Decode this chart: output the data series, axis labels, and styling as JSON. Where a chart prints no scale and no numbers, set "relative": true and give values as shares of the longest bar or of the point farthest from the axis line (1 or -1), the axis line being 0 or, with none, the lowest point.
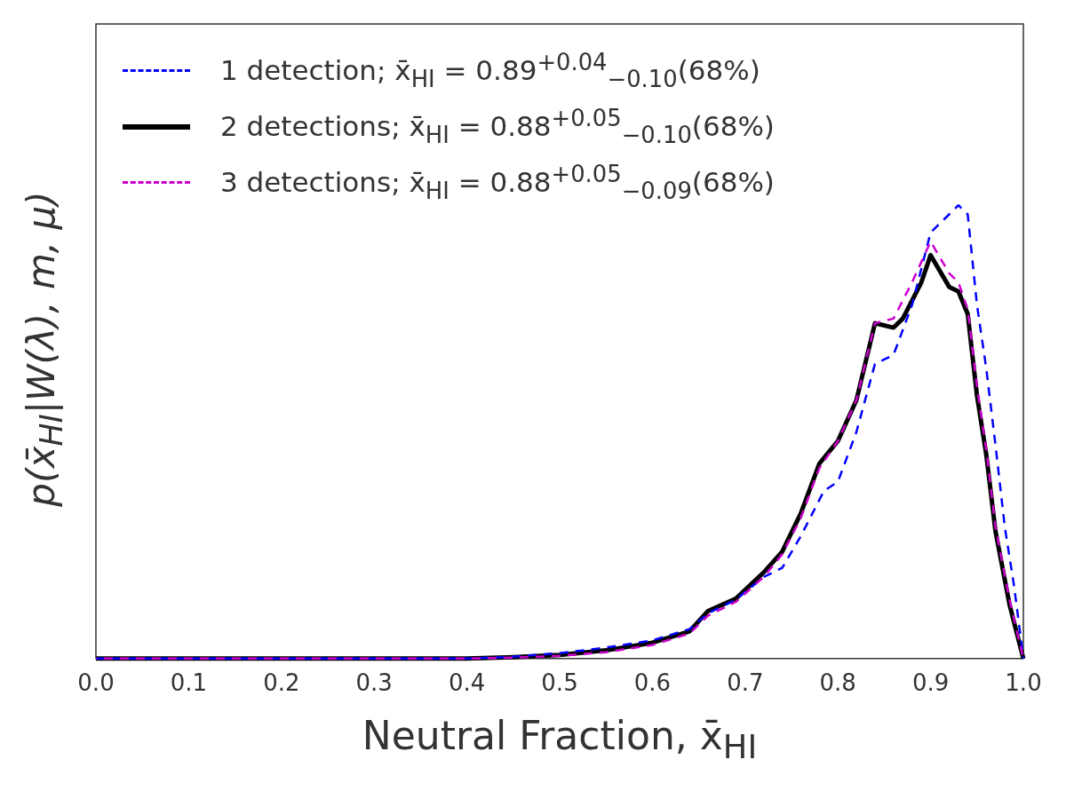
{
  "chart_data": {
    "type": "line",
    "relative": true,
    "xlabel": "Neutral Fraction, x̄$_{HI}$",
    "ylabel": "p(x̄$_{HI}$|W(λ), m, μ)",
    "xlim": [
      0,
      1
    ],
    "xticks": [
      {
        "value": 0,
        "label": "0.0"
      },
      0.1,
      0.2,
      0.3,
      0.4,
      0.5,
      0.6,
      0.7,
      0.8,
      0.9,
      {
        "value": 1,
        "label": "1.0"
      }
    ],
    "grid": false,
    "legend": "top left",
    "marker": "none",
    "series": [
      {
        "name": "1 detection; x̄$_{HI}$ = 0.89$^{+0.04}$$_{−0.10}$(68%)",
        "color": "#0000ff",
        "line_style": "dashed",
        "x": [
          0,
          0.1,
          0.2,
          0.3,
          0.4,
          0.45,
          0.5,
          0.55,
          0.6,
          0.64,
          0.66,
          0.69,
          0.72,
          0.74,
          0.76,
          0.785,
          0.8,
          0.82,
          0.84,
          0.86,
          0.88,
          0.9,
          0.93,
          0.94,
          0.95,
          0.96,
          0.97,
          0.98,
          0.99,
          1
        ],
        "values": [
          0,
          0,
          0,
          0,
          0,
          0.004,
          0.012,
          0.024,
          0.04,
          0.065,
          0.1,
          0.13,
          0.18,
          0.2,
          0.27,
          0.37,
          0.39,
          0.5,
          0.65,
          0.67,
          0.78,
          0.94,
          1,
          0.98,
          0.78,
          0.64,
          0.47,
          0.29,
          0.16,
          0
        ]
      },
      {
        "name": "2 detections; x̄$_{HI}$ = 0.88$^{+0.05}$$_{−0.10}$(68%)",
        "color": "#000000",
        "line_style": "solid",
        "x": [
          0,
          0.1,
          0.2,
          0.3,
          0.4,
          0.45,
          0.5,
          0.55,
          0.6,
          0.64,
          0.66,
          0.69,
          0.72,
          0.74,
          0.76,
          0.78,
          0.8,
          0.82,
          0.84,
          0.86,
          0.87,
          0.89,
          0.9,
          0.92,
          0.93,
          0.94,
          0.95,
          0.96,
          0.97,
          0.985,
          1
        ],
        "values": [
          0,
          0,
          0,
          0,
          0,
          0.003,
          0.008,
          0.018,
          0.035,
          0.06,
          0.105,
          0.132,
          0.19,
          0.236,
          0.32,
          0.43,
          0.48,
          0.57,
          0.74,
          0.73,
          0.75,
          0.83,
          0.89,
          0.82,
          0.81,
          0.76,
          0.58,
          0.45,
          0.28,
          0.12,
          0
        ]
      },
      {
        "name": "3 detections; x̄$_{HI}$ = 0.88$^{+0.05}$$_{−0.09}$(68%)",
        "color": "#cc00cc",
        "line_style": "dashed",
        "x": [
          0,
          0.1,
          0.2,
          0.3,
          0.4,
          0.45,
          0.5,
          0.55,
          0.6,
          0.64,
          0.66,
          0.69,
          0.72,
          0.74,
          0.76,
          0.78,
          0.8,
          0.82,
          0.84,
          0.86,
          0.88,
          0.9,
          0.92,
          0.93,
          0.94,
          0.95,
          0.96,
          0.97,
          0.985,
          1
        ],
        "values": [
          0,
          0,
          0,
          0,
          0,
          0.002,
          0.006,
          0.014,
          0.03,
          0.055,
          0.095,
          0.125,
          0.18,
          0.23,
          0.31,
          0.42,
          0.48,
          0.57,
          0.74,
          0.75,
          0.83,
          0.92,
          0.85,
          0.83,
          0.77,
          0.6,
          0.46,
          0.29,
          0.13,
          0
        ]
      }
    ]
  }
}
